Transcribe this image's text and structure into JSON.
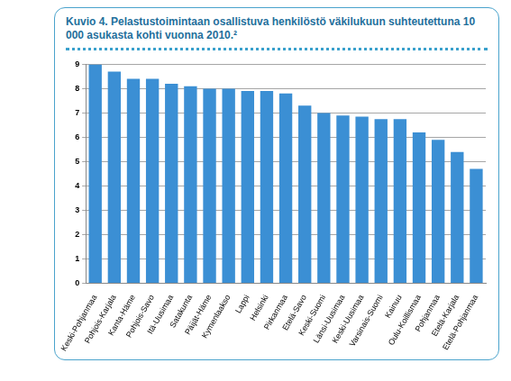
{
  "chart_data": {
    "type": "bar",
    "title": "Kuvio 4. Pelastustoimintaan osallistuva henkilöstö väkilukuun suhteutettuna 10 000 asukasta kohti vuonna 2010.²",
    "categories": [
      "Keski-Pohjanmaa",
      "Pohjois-Karjala",
      "Kanta-Häme",
      "Pohjois-Savo",
      "Itä-Uusimaa",
      "Satakunta",
      "Päijät-Häme",
      "Kymenlaakso",
      "Lappi",
      "Helsinki",
      "Pirkanmaa",
      "Etelä-Savo",
      "Keski-Suomi",
      "Länsi-Uusimaa",
      "Keski-Uusimaa",
      "Varsinais-Suomi",
      "Kainuu",
      "Oulu-Koillismaa",
      "Pohjanmaa",
      "Etelä-Karjala",
      "Etelä-Pohjanmaa"
    ],
    "values": [
      9.0,
      8.7,
      8.4,
      8.4,
      8.2,
      8.1,
      8.0,
      8.0,
      7.9,
      7.9,
      7.8,
      7.3,
      7.0,
      6.9,
      6.85,
      6.75,
      6.75,
      6.2,
      5.9,
      5.4,
      4.7
    ],
    "color": "#3b8fd4",
    "ylim": [
      0,
      9
    ],
    "yticks": [
      0,
      1,
      2,
      3,
      4,
      5,
      6,
      7,
      8,
      9
    ],
    "grid": true
  }
}
